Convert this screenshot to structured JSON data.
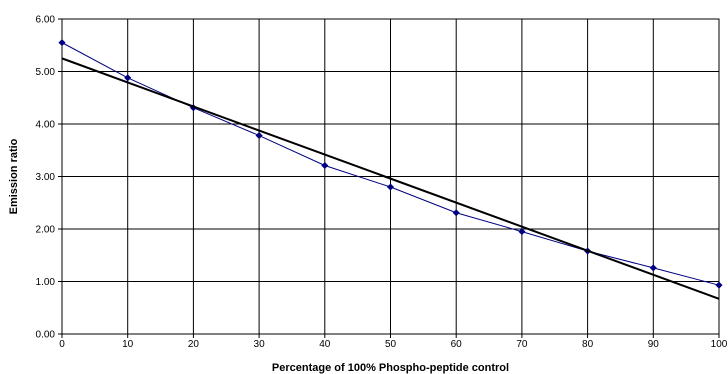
{
  "chart_data": {
    "type": "scatter",
    "title": "",
    "xlabel": "Percentage of 100% Phospho-peptide control",
    "ylabel": "Emission ratio",
    "xlim": [
      0,
      100
    ],
    "ylim": [
      0,
      6
    ],
    "x_ticks": [
      0,
      10,
      20,
      30,
      40,
      50,
      60,
      70,
      80,
      90,
      100
    ],
    "y_ticks": [
      "0.00",
      "1.00",
      "2.00",
      "3.00",
      "4.00",
      "5.00",
      "6.00"
    ],
    "grid": true,
    "legend": "none",
    "series": [
      {
        "kind": "markers-line",
        "color": "#000080",
        "x": [
          0,
          10,
          20,
          30,
          40,
          50,
          60,
          70,
          80,
          90,
          100
        ],
        "y": [
          5.55,
          4.88,
          4.31,
          3.78,
          3.21,
          2.8,
          2.31,
          1.95,
          1.58,
          1.26,
          0.93
        ]
      },
      {
        "kind": "linear-trendline",
        "color": "#000000",
        "x": [
          0,
          100
        ],
        "y": [
          5.25,
          0.67
        ]
      }
    ]
  }
}
